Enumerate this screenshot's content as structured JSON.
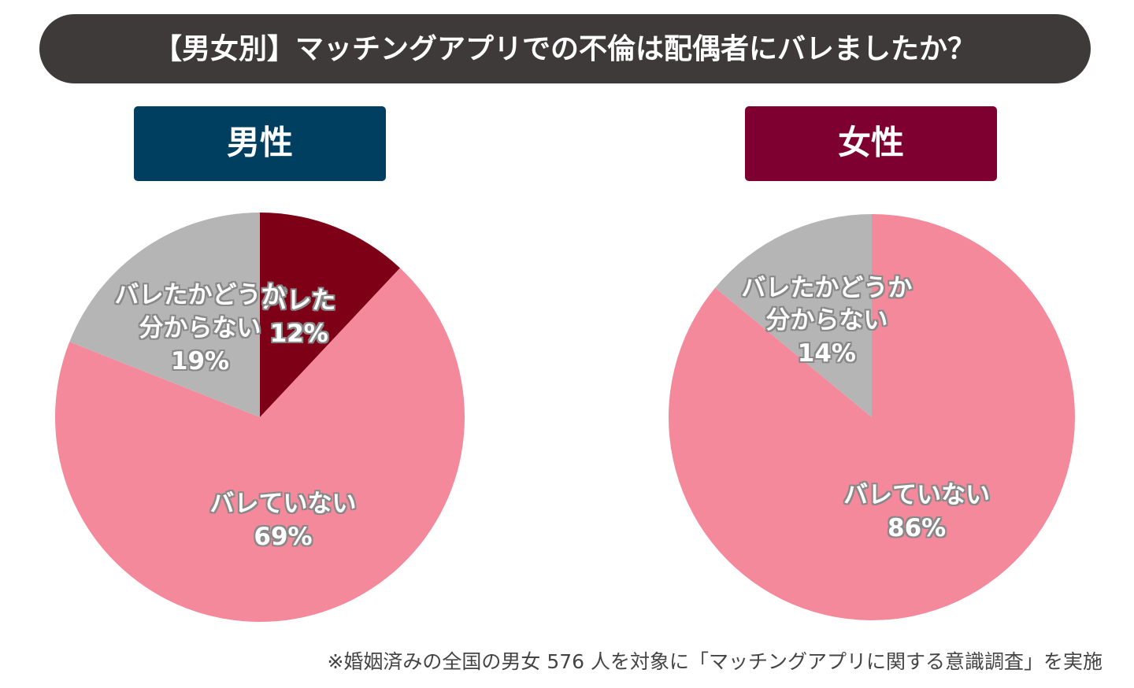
{
  "title": "【男女別】マッチングアプリでの不倫は配偶者にバレましたか？",
  "chart_data": [
    {
      "type": "pie",
      "title": "男性",
      "title_color": "#003f5f",
      "categories": [
        "バレた",
        "バレていない",
        "バレたかどうか分からない"
      ],
      "values": [
        12,
        69,
        19
      ],
      "value_labels": [
        "12%",
        "69%",
        "19%"
      ],
      "colors": [
        "#7d0016",
        "#f4899b",
        "#b5b5b5"
      ]
    },
    {
      "type": "pie",
      "title": "女性",
      "title_color": "#7d0030",
      "categories": [
        "バレていない",
        "バレたかどうか分からない"
      ],
      "values": [
        86,
        14
      ],
      "value_labels": [
        "86%",
        "14%"
      ],
      "colors": [
        "#f4899b",
        "#b5b5b5"
      ]
    }
  ],
  "note": "※婚姻済みの全国の男女 576 人を対象に「マッチングアプリに関する意識調査」を実施"
}
